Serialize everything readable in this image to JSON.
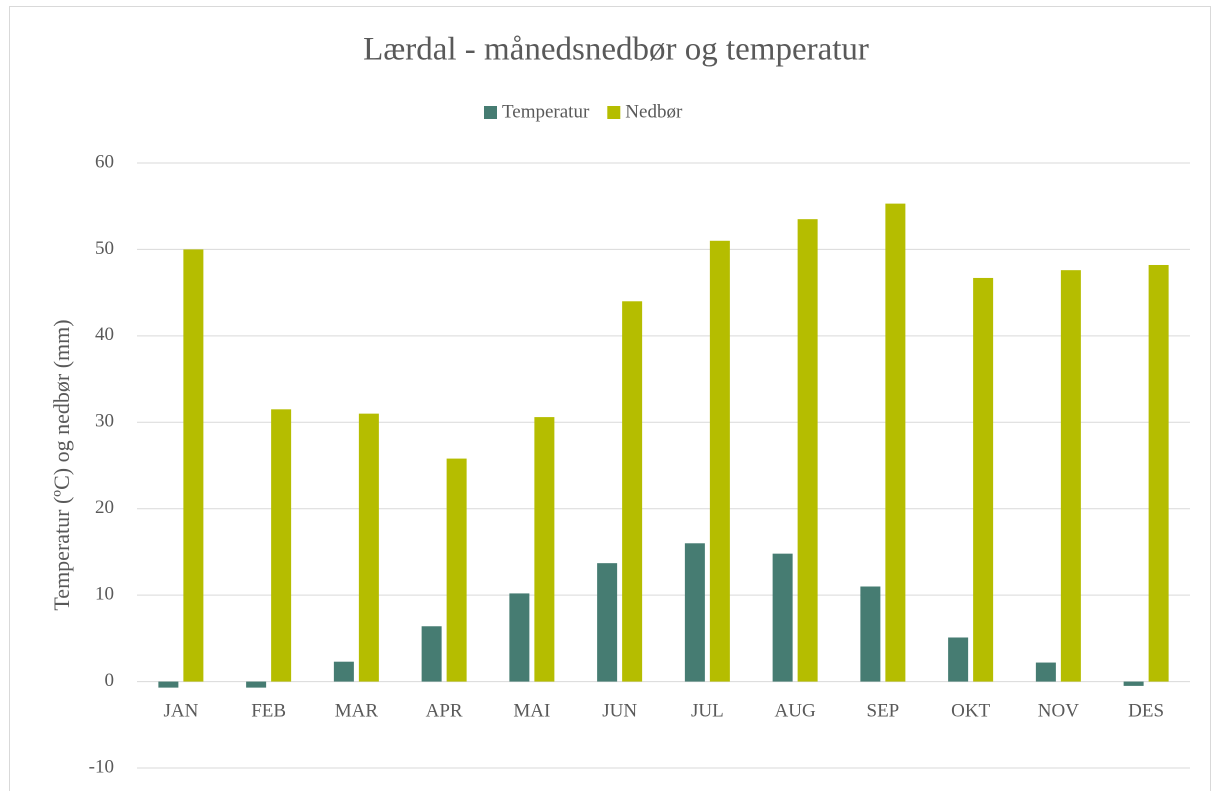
{
  "chart_data": {
    "type": "bar",
    "title": "Lærdal - månedsnedbør og temperatur",
    "y_label": "Temperatur (ºC) og nedbør (mm)",
    "categories": [
      "JAN",
      "FEB",
      "MAR",
      "APR",
      "MAI",
      "JUN",
      "JUL",
      "AUG",
      "SEP",
      "OKT",
      "NOV",
      "DES"
    ],
    "series": [
      {
        "name": "Temperatur",
        "color": "#467c72",
        "values": [
          -0.7,
          -0.7,
          2.3,
          6.4,
          10.2,
          13.7,
          16.0,
          14.8,
          11.0,
          5.1,
          2.2,
          -0.5
        ]
      },
      {
        "name": "Nedbør",
        "color": "#b5bd00",
        "values": [
          50.0,
          31.5,
          31.0,
          25.8,
          30.6,
          44.0,
          51.0,
          53.5,
          55.3,
          46.7,
          47.6,
          48.2
        ]
      }
    ],
    "ylim": [
      -10,
      60
    ],
    "yticks": [
      -10,
      0,
      10,
      20,
      30,
      40,
      50,
      60
    ],
    "grid": true,
    "legend": "top"
  }
}
